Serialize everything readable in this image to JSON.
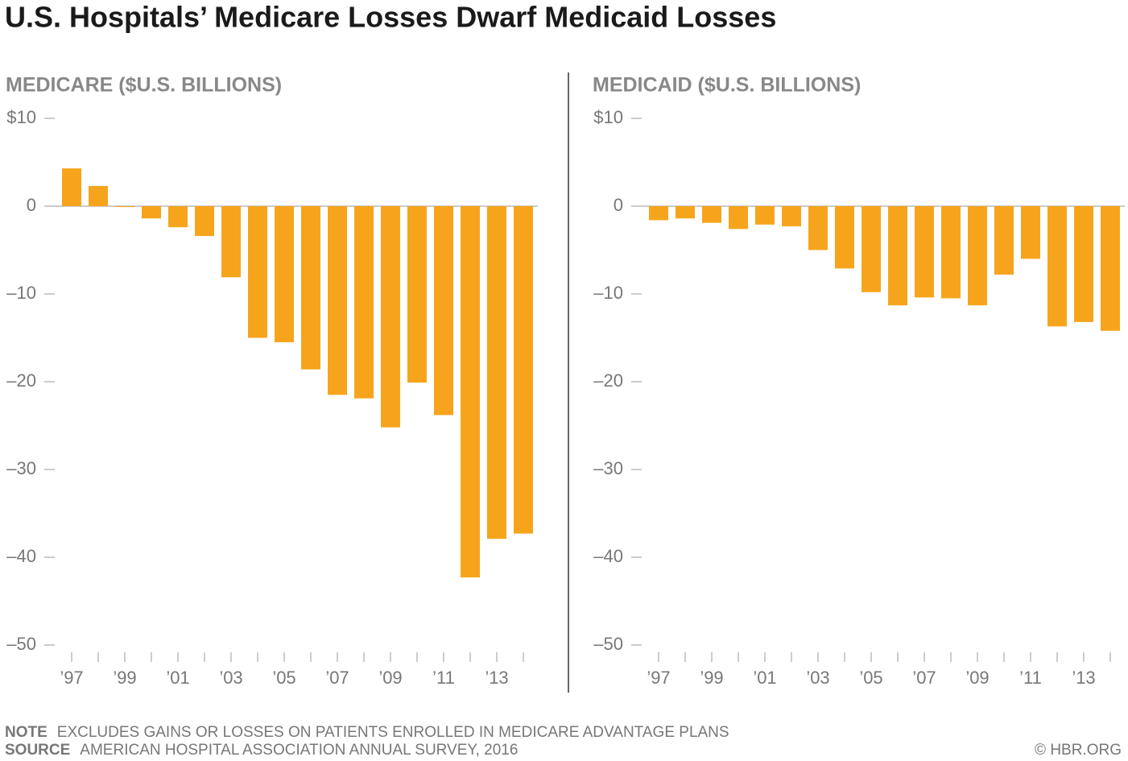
{
  "title": "U.S. Hospitals’ Medicare Losses Dwarf Medicaid Losses",
  "note": {
    "label": "NOTE",
    "text": "EXCLUDES GAINS OR LOSSES ON PATIENTS ENROLLED IN MEDICARE ADVANTAGE PLANS"
  },
  "source": {
    "label": "SOURCE",
    "text": "AMERICAN HOSPITAL ASSOCIATION ANNUAL SURVEY, 2016"
  },
  "credit": "© HBR.ORG",
  "chart_data": [
    {
      "type": "bar",
      "subtitle": "MEDICARE ($U.S. BILLIONS)",
      "categories": [
        "’97",
        null,
        "’99",
        null,
        "’01",
        null,
        "’03",
        null,
        "’05",
        null,
        "’07",
        null,
        "’09",
        null,
        "’11",
        null,
        "’13",
        null
      ],
      "values": [
        4.3,
        2.3,
        -0.1,
        -1.4,
        -2.4,
        -3.4,
        -8.1,
        -15.0,
        -15.5,
        -18.6,
        -21.5,
        -21.9,
        -25.2,
        -20.1,
        -23.8,
        -42.3,
        -37.9,
        -37.3
      ],
      "color": "#f7a41d",
      "ylim": [
        -50,
        10
      ],
      "yticks": [
        {
          "value": 10,
          "label": "$10"
        },
        0,
        {
          "value": -10,
          "label": "–10"
        },
        {
          "value": -20,
          "label": "–20"
        },
        {
          "value": -30,
          "label": "–30"
        },
        {
          "value": -40,
          "label": "–40"
        },
        {
          "value": -50,
          "label": "–50"
        }
      ]
    },
    {
      "type": "bar",
      "subtitle": "MEDICAID ($U.S. BILLIONS)",
      "categories": [
        "’97",
        null,
        "’99",
        null,
        "’01",
        null,
        "’03",
        null,
        "’05",
        null,
        "’07",
        null,
        "’09",
        null,
        "’11",
        null,
        "’13",
        null
      ],
      "values": [
        -1.6,
        -1.4,
        -1.9,
        -2.6,
        -2.1,
        -2.3,
        -5.0,
        -7.1,
        -9.8,
        -11.3,
        -10.4,
        -10.5,
        -11.3,
        -7.8,
        -6.0,
        -13.7,
        -13.2,
        -14.2
      ],
      "color": "#f7a41d",
      "ylim": [
        -50,
        10
      ],
      "yticks": [
        {
          "value": 10,
          "label": "$10"
        },
        0,
        {
          "value": -10,
          "label": "–10"
        },
        {
          "value": -20,
          "label": "–20"
        },
        {
          "value": -30,
          "label": "–30"
        },
        {
          "value": -40,
          "label": "–40"
        },
        {
          "value": -50,
          "label": "–50"
        }
      ]
    }
  ]
}
